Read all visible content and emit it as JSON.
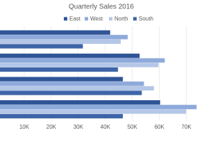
{
  "chart_data": {
    "type": "bar",
    "orientation": "horizontal",
    "title": "Quarterly Sales 2016",
    "categories": [
      null,
      null,
      null,
      null
    ],
    "series": [
      {
        "name": "East",
        "color": "#2f5597",
        "values": [
          41800,
          52700,
          46500,
          60300
        ]
      },
      {
        "name": "West",
        "color": "#8eaadb",
        "values": [
          48300,
          62000,
          54300,
          73800
        ]
      },
      {
        "name": "North",
        "color": "#b4c7e7",
        "values": [
          45700,
          59700,
          58000,
          69900
        ]
      },
      {
        "name": "South",
        "color": "#3f65a8",
        "values": [
          31700,
          44700,
          53500,
          46500
        ]
      }
    ],
    "xlim": [
      0,
      76000
    ],
    "xticks": [
      {
        "value": 10000,
        "label": "10K"
      },
      {
        "value": 20000,
        "label": "20K"
      },
      {
        "value": 30000,
        "label": "30K"
      },
      {
        "value": 40000,
        "label": "40K"
      },
      {
        "value": 50000,
        "label": "50K"
      },
      {
        "value": 60000,
        "label": "60K"
      },
      {
        "value": 70000,
        "label": "70K"
      }
    ],
    "grid": true,
    "legend": "top"
  }
}
